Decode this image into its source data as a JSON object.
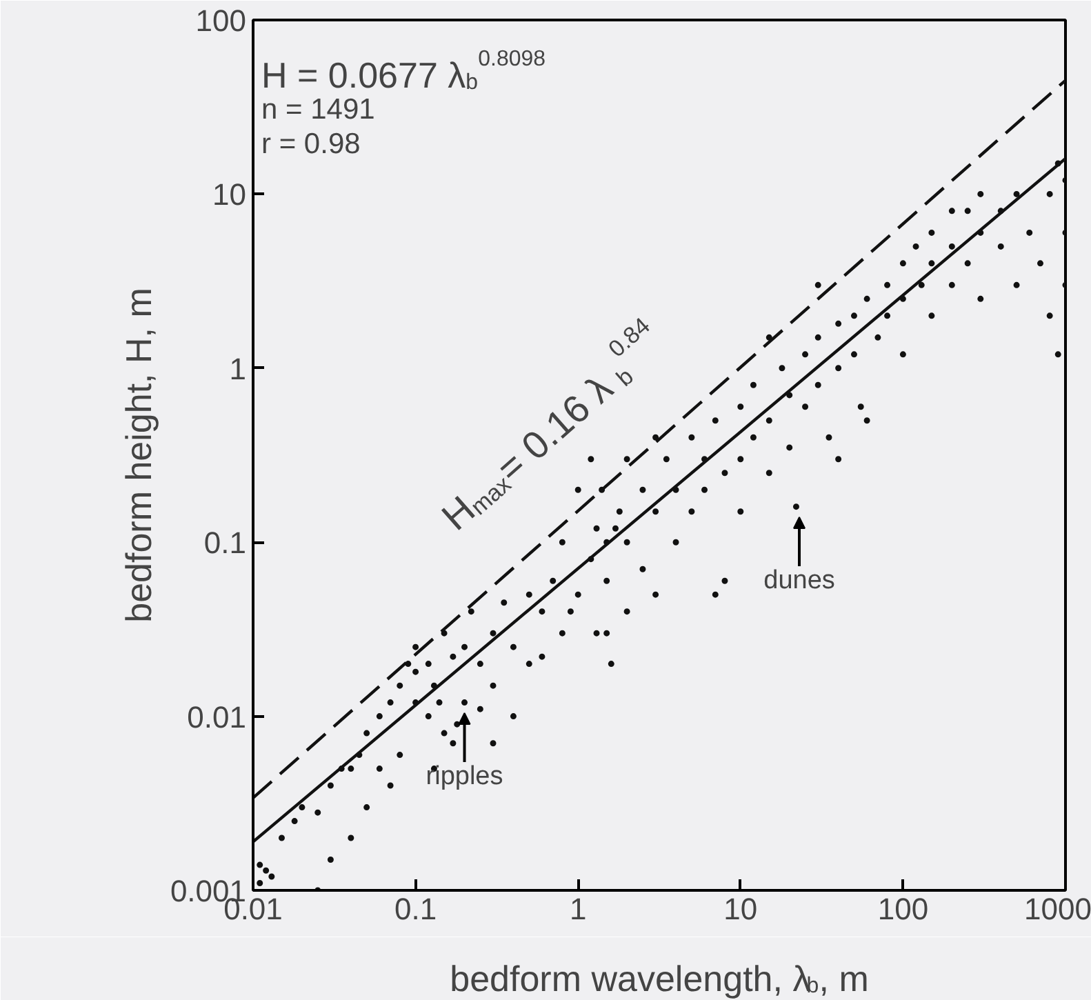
{
  "chart_data": {
    "type": "scatter",
    "xlabel": "bedform wavelength, λ$_{b}$, m",
    "ylabel": "bedform height, H, m",
    "log": "xy",
    "grid": false,
    "marker": "circle",
    "xlim": [
      0.01,
      1000
    ],
    "ylim": [
      0.001,
      100
    ],
    "xticks": [
      0.01,
      0.1,
      1,
      10,
      100,
      1000
    ],
    "yticks": [
      0.001,
      0.01,
      0.1,
      1,
      10,
      100
    ],
    "series": [
      {
        "color": "#111111",
        "x": [
          0.011,
          0.012,
          0.013,
          0.011,
          0.015,
          0.018,
          0.02,
          0.025,
          0.03,
          0.035,
          0.04,
          0.045,
          0.05,
          0.06,
          0.07,
          0.08,
          0.09,
          0.1,
          0.1,
          0.12,
          0.13,
          0.15,
          0.15,
          0.17,
          0.2,
          0.2,
          0.22,
          0.25,
          0.3,
          0.3,
          0.35,
          0.4,
          0.5,
          0.5,
          0.6,
          0.7,
          0.04,
          0.05,
          0.06,
          0.07,
          0.08,
          0.025,
          0.03,
          0.13,
          0.17,
          0.3,
          0.1,
          0.12,
          0.14,
          0.18,
          0.25,
          0.4,
          0.6,
          0.8,
          1,
          1.2,
          1.3,
          1.5,
          1.5,
          1.6,
          1.8,
          2,
          2,
          2.5,
          2.5,
          3,
          3,
          3.5,
          4,
          4,
          5,
          5,
          6,
          7,
          7,
          8,
          10,
          10,
          10,
          12,
          12,
          15,
          15,
          18,
          20,
          20,
          22,
          25,
          25,
          30,
          30,
          35,
          40,
          40,
          50,
          50,
          55,
          60,
          70,
          80,
          80,
          100,
          100,
          100,
          120,
          130,
          150,
          150,
          200,
          200,
          200,
          250,
          300,
          300,
          300,
          400,
          400,
          500,
          500,
          600,
          700,
          800,
          800,
          900,
          900,
          1000,
          1000,
          1000,
          0.8,
          1,
          1.2,
          0.9,
          2,
          1.3,
          60,
          8,
          40,
          1.5,
          1.7,
          1.4,
          3,
          6,
          15,
          30,
          150,
          250
        ],
        "values": [
          0.0011,
          0.0013,
          0.0012,
          0.0014,
          0.002,
          0.0025,
          0.003,
          0.0028,
          0.004,
          0.005,
          0.005,
          0.006,
          0.008,
          0.01,
          0.012,
          0.015,
          0.02,
          0.012,
          0.025,
          0.02,
          0.015,
          0.03,
          0.008,
          0.022,
          0.025,
          0.012,
          0.04,
          0.02,
          0.03,
          0.015,
          0.045,
          0.025,
          0.05,
          0.02,
          0.04,
          0.06,
          0.002,
          0.003,
          0.005,
          0.004,
          0.006,
          0.001,
          0.0015,
          0.005,
          0.007,
          0.007,
          0.018,
          0.01,
          0.012,
          0.009,
          0.011,
          0.01,
          0.022,
          0.03,
          0.05,
          0.08,
          0.03,
          0.1,
          0.06,
          0.02,
          0.15,
          0.1,
          0.04,
          0.2,
          0.07,
          0.15,
          0.05,
          0.3,
          0.2,
          0.1,
          0.4,
          0.15,
          0.3,
          0.05,
          0.5,
          0.25,
          0.6,
          0.3,
          0.15,
          0.8,
          0.4,
          0.5,
          0.25,
          1,
          0.7,
          0.35,
          0.16,
          1.2,
          0.6,
          1.5,
          0.8,
          0.4,
          1.8,
          1,
          2,
          1.2,
          0.6,
          2.5,
          1.5,
          3,
          2,
          4,
          2.5,
          1.2,
          5,
          3,
          6,
          2,
          5,
          3,
          8,
          4,
          6,
          2.5,
          10,
          5,
          8,
          3,
          10,
          6,
          4,
          10,
          2,
          15,
          1.2,
          12,
          6,
          3,
          0.1,
          0.2,
          0.3,
          0.04,
          0.3,
          0.12,
          0.5,
          0.06,
          0.3,
          0.03,
          0.12,
          0.2,
          0.4,
          0.2,
          1.5,
          3,
          4,
          8
        ]
      },
      {
        "type": "line",
        "marker": "none",
        "color": "#111111",
        "line_style": "solid",
        "x": [
          0.01,
          1000
        ],
        "values": [
          0.0019,
          16
        ]
      },
      {
        "type": "line",
        "marker": "none",
        "color": "#111111",
        "line_style": "dashed",
        "x": [
          0.01,
          1000
        ],
        "values": [
          0.0034,
          45
        ]
      }
    ],
    "annotations": [
      "H = 0.0677 λ$_{b}$$^{0.8098}$",
      "n = 1491",
      "r  = 0.98",
      "H$_{max}$ = 0.16 λ$_{b}$$^{0.84}$",
      {
        "text": "dunes",
        "x": 23,
        "y": 0.16
      },
      {
        "text": "ripples",
        "x": 0.2,
        "y": 0.012
      }
    ]
  }
}
